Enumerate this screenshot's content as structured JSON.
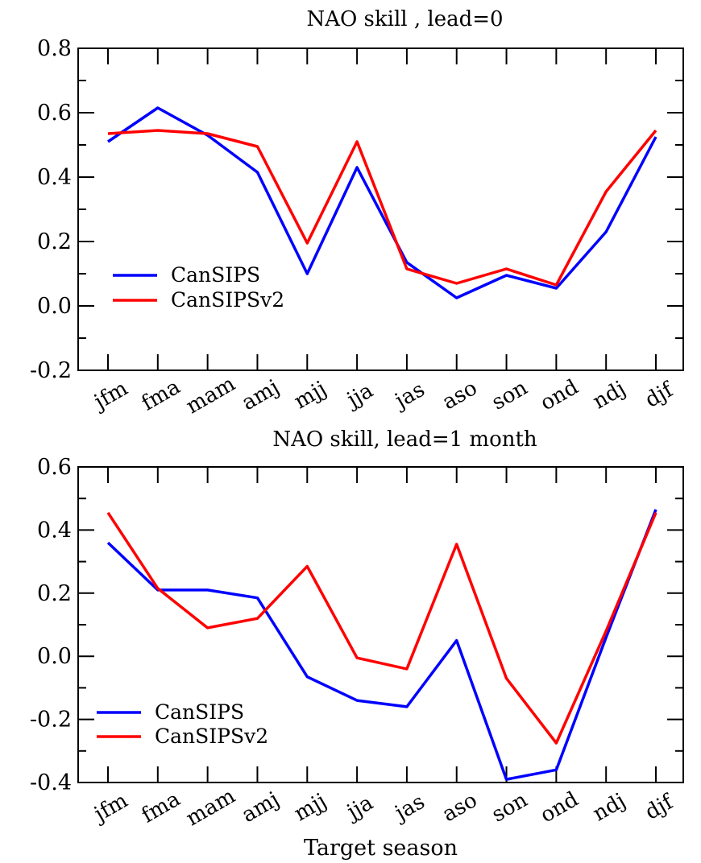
{
  "chart_data": [
    {
      "type": "line",
      "title": "NAO skill , lead=0",
      "xlabel": "",
      "ylabel": "",
      "categories": [
        "jfm",
        "fma",
        "mam",
        "amj",
        "mjj",
        "jja",
        "jas",
        "aso",
        "son",
        "ond",
        "ndj",
        "djf"
      ],
      "yticks": [
        "-0.2",
        "0.0",
        "0.2",
        "0.4",
        "0.6",
        "0.8"
      ],
      "ylim": [
        -0.2,
        0.8
      ],
      "grid": false,
      "legend": "bottom-left",
      "series": [
        {
          "name": "CanSIPS",
          "color": "#0000ff",
          "values": [
            0.51,
            0.615,
            0.53,
            0.415,
            0.1,
            0.43,
            0.135,
            0.025,
            0.095,
            0.055,
            0.23,
            0.525
          ]
        },
        {
          "name": "CanSIPSv2",
          "color": "#ff0000",
          "values": [
            0.535,
            0.545,
            0.535,
            0.495,
            0.195,
            0.51,
            0.115,
            0.07,
            0.115,
            0.065,
            0.355,
            0.545
          ]
        }
      ]
    },
    {
      "type": "line",
      "title": "NAO skill, lead=1 month",
      "xlabel": "Target season",
      "ylabel": "",
      "categories": [
        "jfm",
        "fma",
        "mam",
        "amj",
        "mjj",
        "jja",
        "jas",
        "aso",
        "son",
        "ond",
        "ndj",
        "djf"
      ],
      "yticks": [
        "-0.4",
        "-0.2",
        "0.0",
        "0.2",
        "0.4",
        "0.6"
      ],
      "ylim": [
        -0.4,
        0.6
      ],
      "grid": false,
      "legend": "bottom-left",
      "series": [
        {
          "name": "CanSIPS",
          "color": "#0000ff",
          "values": [
            0.36,
            0.21,
            0.21,
            0.185,
            -0.065,
            -0.14,
            -0.16,
            0.05,
            -0.39,
            -0.36,
            0.06,
            0.465
          ]
        },
        {
          "name": "CanSIPSv2",
          "color": "#ff0000",
          "values": [
            0.455,
            0.215,
            0.09,
            0.12,
            0.285,
            -0.005,
            -0.04,
            0.355,
            -0.07,
            -0.275,
            0.08,
            0.455
          ]
        }
      ]
    }
  ]
}
